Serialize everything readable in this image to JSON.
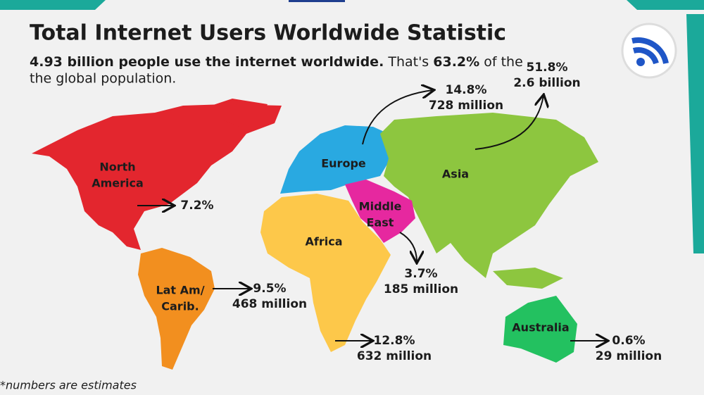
{
  "header": {
    "title": "Total Internet Users Worldwide Statistic",
    "subtitle": {
      "bold_lead": "4.93 billion people use the internet worldwide.",
      "text_a": "That's",
      "bold_share": "63.2%",
      "text_b": "of the",
      "line2": "the global population."
    }
  },
  "regions": [
    {
      "label": [
        "North",
        "America"
      ],
      "share": "7.2%"
    },
    {
      "label": [
        "Europe"
      ],
      "share": "14.8%",
      "users": "728 million"
    },
    {
      "label": [
        "Asia"
      ],
      "share": "51.8%",
      "users": "2.6 billion"
    },
    {
      "label": [
        "Middle",
        "East"
      ],
      "share": "3.7%",
      "users": "185 million"
    },
    {
      "label": [
        "Africa"
      ],
      "share": "12.8%",
      "users": "632 million"
    },
    {
      "label": [
        "Lat Am/",
        "Carib."
      ],
      "share": "9.5%",
      "users": "468 million"
    },
    {
      "label": [
        "Australia"
      ],
      "share": "0.6%",
      "users": "29 million"
    }
  ],
  "footnote": "*numbers are estimates"
}
